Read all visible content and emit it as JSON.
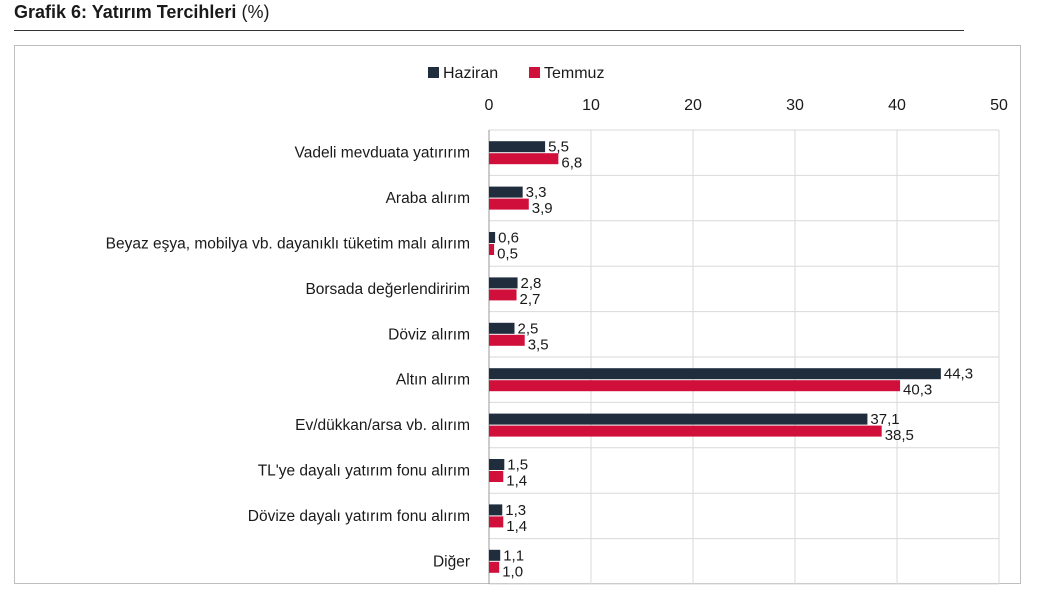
{
  "title": {
    "bold": "Grafik 6: Yatırım Tercihleri",
    "unit": "(%)"
  },
  "colors": {
    "haziran": "#1f2d3d",
    "temmuz": "#d0103a",
    "grid": "#d9d9d9"
  },
  "chart_data": {
    "type": "bar",
    "orientation": "horizontal",
    "categories": [
      "Vadeli mevduata yatırırım",
      "Araba alırım",
      "Beyaz eşya, mobilya vb. dayanıklı tüketim malı alırım",
      "Borsada değerlendiririm",
      "Döviz alırım",
      "Altın alırım",
      "Ev/dükkan/arsa vb. alırım",
      "TL'ye dayalı yatırım fonu alırım",
      "Dövize dayalı yatırım fonu alırım",
      "Diğer"
    ],
    "series": [
      {
        "name": "Haziran",
        "values": [
          5.5,
          3.3,
          0.6,
          2.8,
          2.5,
          44.3,
          37.1,
          1.5,
          1.3,
          1.1
        ],
        "labels": [
          "5,5",
          "3,3",
          "0,6",
          "2,8",
          "2,5",
          "44,3",
          "37,1",
          "1,5",
          "1,3",
          "1,1"
        ]
      },
      {
        "name": "Temmuz",
        "values": [
          6.8,
          3.9,
          0.5,
          2.7,
          3.5,
          40.3,
          38.5,
          1.4,
          1.4,
          1.0
        ],
        "labels": [
          "6,8",
          "3,9",
          "0,5",
          "2,7",
          "3,5",
          "40,3",
          "38,5",
          "1,4",
          "1,4",
          "1,0"
        ]
      }
    ],
    "xlim": [
      0,
      50
    ],
    "xticks": [
      "0",
      "10",
      "20",
      "30",
      "40",
      "50"
    ],
    "xtick_values": [
      0,
      10,
      20,
      30,
      40,
      50
    ],
    "axis_position": "top",
    "grid": true,
    "legend_position": "top"
  }
}
